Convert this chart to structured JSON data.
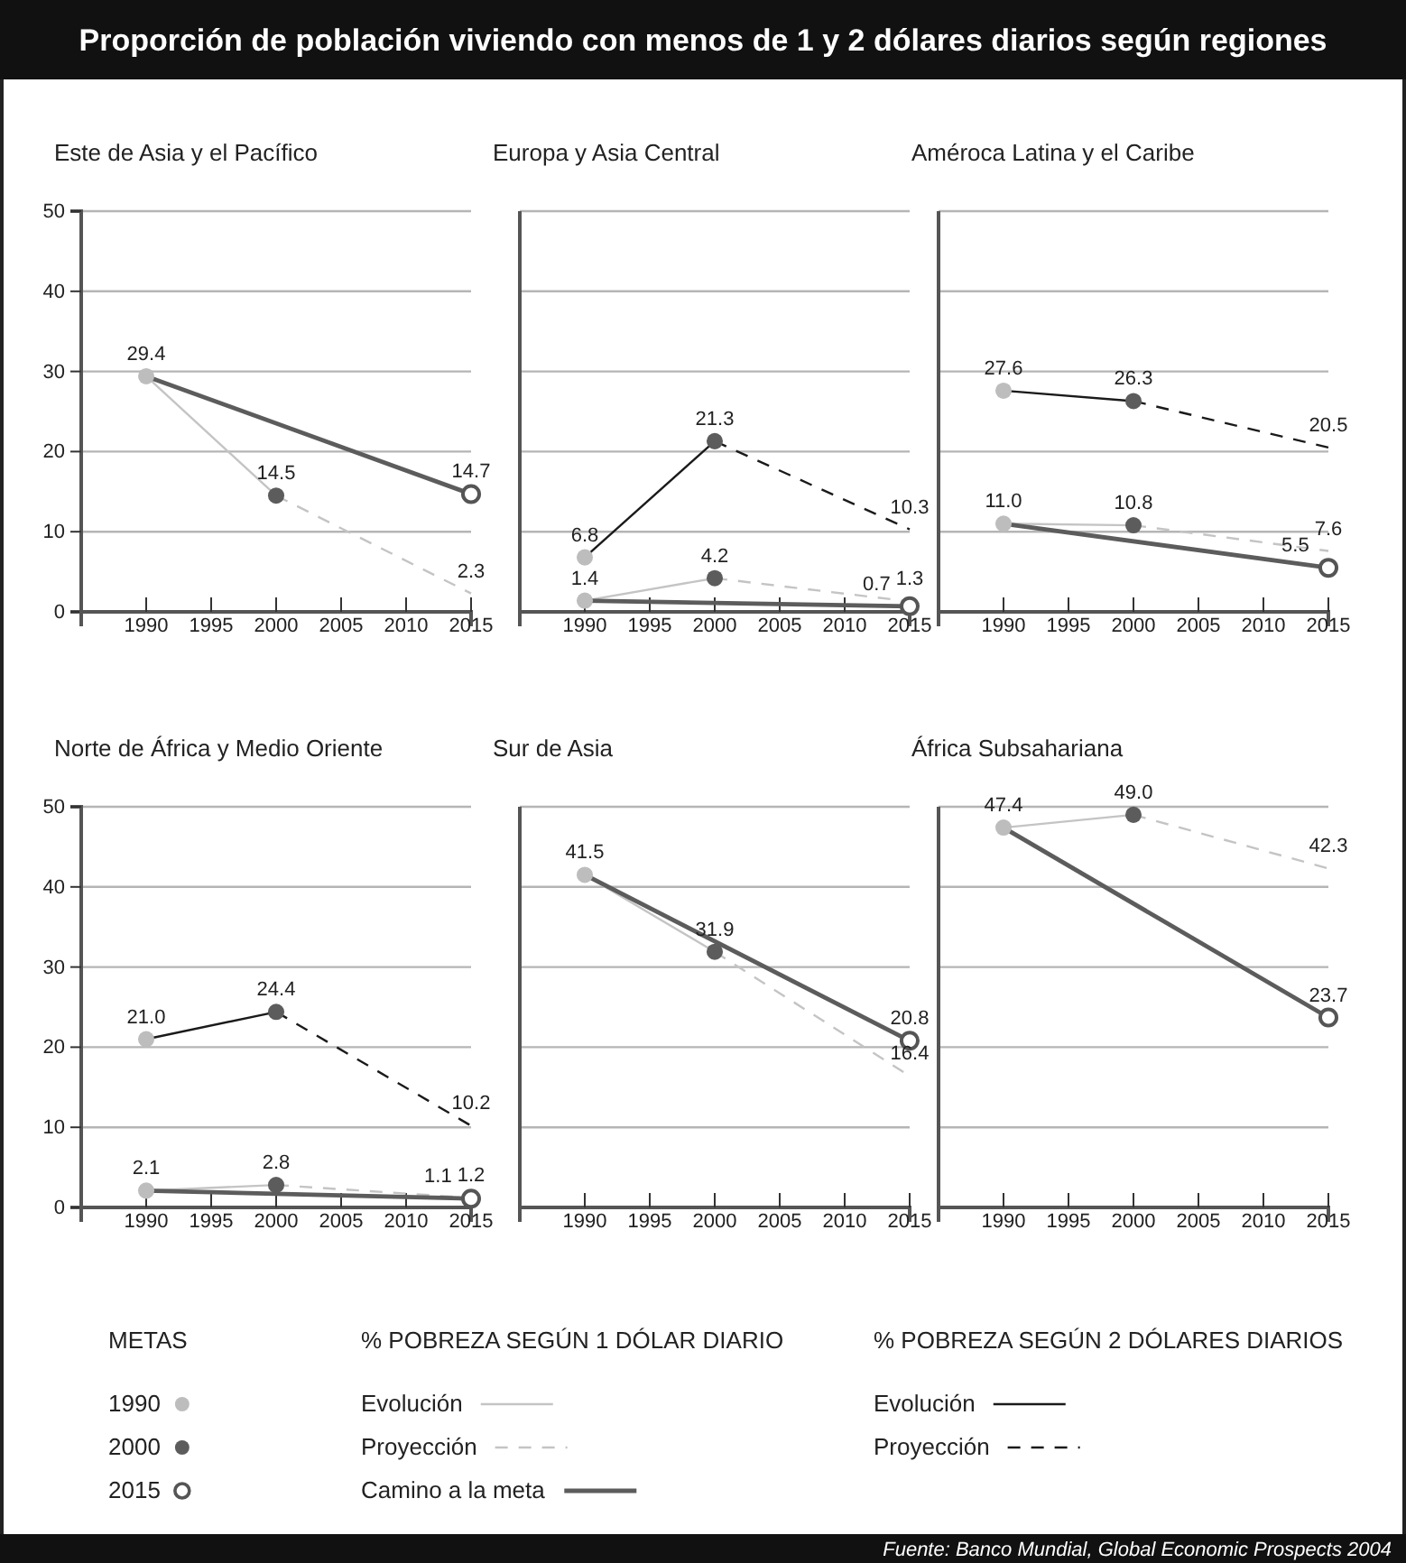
{
  "chart_data": [
    {
      "type": "other",
      "title": "Proporción de población viviendo con menos de 1 y 2 dólares diarios según regiones",
      "annotations": [
        "METAS",
        "% POBREZA SEGÚN 1 DÓLAR DIARIO",
        "% POBREZA SEGÚN 2 DÓLARES DIARIOS",
        "Fuente: Banco Mundial, Global Economic Prospects 2004"
      ]
    },
    {
      "type": "line",
      "title": "Este de Asia y el Pacífico",
      "xlim": [
        1985,
        2015
      ],
      "xticks": [
        1990,
        1995,
        2000,
        2005,
        2010,
        2015
      ],
      "ylim": [
        0,
        50
      ],
      "yticks": [
        0,
        10,
        20,
        30,
        40,
        50
      ],
      "grid": "y",
      "series": [
        {
          "type": "scatter",
          "marker": "circle",
          "color": "#bdbdbd",
          "x": [
            1990
          ],
          "values": [
            29.4
          ],
          "value_labels": [
            "29.4"
          ]
        },
        {
          "type": "scatter",
          "marker": "circle",
          "color": "#5c5c5c",
          "x": [
            2000
          ],
          "values": [
            14.5
          ],
          "value_labels": [
            "14.5"
          ]
        },
        {
          "type": "scatter",
          "marker": "circle",
          "color": "#ffffff",
          "x": [
            2015
          ],
          "values": [
            14.7
          ],
          "value_labels": [
            "14.7"
          ]
        },
        {
          "color": "#c4c4c4",
          "line_style": "solid",
          "x": [
            1990,
            2000
          ],
          "values": [
            29.4,
            14.5
          ]
        },
        {
          "color": "#c4c4c4",
          "line_style": "dashed",
          "x": [
            2000,
            2015
          ],
          "values": [
            14.5,
            2.3
          ],
          "value_labels": [
            null,
            "2.3"
          ]
        },
        {
          "color": "#5c5c5c",
          "line_style": "solid",
          "x": [
            1990,
            2015
          ],
          "values": [
            29.4,
            14.7
          ]
        }
      ]
    },
    {
      "type": "line",
      "title": "Europa y Asia Central",
      "xlim": [
        1985,
        2015
      ],
      "xticks": [
        1990,
        1995,
        2000,
        2005,
        2010,
        2015
      ],
      "ylim": [
        0,
        50
      ],
      "yticks": [
        0,
        10,
        20,
        30,
        40,
        50
      ],
      "grid": "y",
      "tick_labels": "x",
      "legend": "bottom",
      "series": [
        {
          "name": "1990",
          "type": "scatter",
          "marker": "circle",
          "color": "#bdbdbd",
          "x": [
            1990,
            1990
          ],
          "values": [
            6.8,
            1.4
          ],
          "value_labels": [
            "6.8",
            "1.4"
          ]
        },
        {
          "name": "2000",
          "type": "scatter",
          "marker": "circle",
          "color": "#5c5c5c",
          "x": [
            2000,
            2000
          ],
          "values": [
            21.3,
            4.2
          ],
          "value_labels": [
            "21.3",
            "4.2"
          ]
        },
        {
          "name": "2015",
          "type": "scatter",
          "marker": "circle",
          "color": "#ffffff",
          "x": [
            2015
          ],
          "values": [
            0.7
          ],
          "value_labels": [
            "0.7"
          ]
        },
        {
          "name": "Evolución",
          "color": "#c4c4c4",
          "line_style": "solid",
          "x": [
            1990,
            2000
          ],
          "values": [
            1.4,
            4.2
          ]
        },
        {
          "name": "Proyección",
          "color": "#c4c4c4",
          "line_style": "dashed",
          "x": [
            2000,
            2015
          ],
          "values": [
            4.2,
            1.3
          ],
          "value_labels": [
            null,
            "1.3"
          ]
        },
        {
          "name": "Camino a la meta",
          "color": "#5c5c5c",
          "line_style": "solid",
          "x": [
            1990,
            2015
          ],
          "values": [
            1.4,
            0.7
          ]
        },
        {
          "name": "Evolución",
          "color": "#1a1a1a",
          "line_style": "solid",
          "x": [
            1990,
            2000
          ],
          "values": [
            6.8,
            21.3
          ]
        },
        {
          "name": "Proyección",
          "color": "#1a1a1a",
          "line_style": "dashed",
          "x": [
            2000,
            2015
          ],
          "values": [
            21.3,
            10.3
          ],
          "value_labels": [
            null,
            "10.3"
          ]
        }
      ]
    },
    {
      "type": "line",
      "title": "Améroca Latina y el Caribe",
      "xlim": [
        1985,
        2015
      ],
      "xticks": [
        1990,
        1995,
        2000,
        2005,
        2010,
        2015
      ],
      "ylim": [
        0,
        50
      ],
      "yticks": [
        0,
        10,
        20,
        30,
        40,
        50
      ],
      "grid": "y",
      "tick_labels": "x",
      "series": [
        {
          "type": "scatter",
          "marker": "circle",
          "color": "#bdbdbd",
          "x": [
            1990,
            1990
          ],
          "values": [
            27.6,
            11.0
          ],
          "value_labels": [
            "27.6",
            "11.0"
          ]
        },
        {
          "type": "scatter",
          "marker": "circle",
          "color": "#5c5c5c",
          "x": [
            2000,
            2000
          ],
          "values": [
            26.3,
            10.8
          ],
          "value_labels": [
            "26.3",
            "10.8"
          ]
        },
        {
          "type": "scatter",
          "marker": "circle",
          "color": "#ffffff",
          "x": [
            2015
          ],
          "values": [
            5.5
          ],
          "value_labels": [
            "5.5"
          ]
        },
        {
          "color": "#c4c4c4",
          "line_style": "solid",
          "x": [
            1990,
            2000
          ],
          "values": [
            11.0,
            10.8
          ]
        },
        {
          "color": "#c4c4c4",
          "line_style": "dashed",
          "x": [
            2000,
            2015
          ],
          "values": [
            10.8,
            7.6
          ],
          "value_labels": [
            null,
            "7.6"
          ]
        },
        {
          "color": "#5c5c5c",
          "line_style": "solid",
          "x": [
            1990,
            2015
          ],
          "values": [
            11.0,
            5.5
          ]
        },
        {
          "color": "#1a1a1a",
          "line_style": "solid",
          "x": [
            1990,
            2000
          ],
          "values": [
            27.6,
            26.3
          ]
        },
        {
          "color": "#1a1a1a",
          "line_style": "dashed",
          "x": [
            2000,
            2015
          ],
          "values": [
            26.3,
            20.5
          ],
          "value_labels": [
            null,
            "20.5"
          ]
        }
      ]
    },
    {
      "type": "line",
      "title": "Norte de África y Medio Oriente",
      "xlim": [
        1985,
        2015
      ],
      "xticks": [
        1990,
        1995,
        2000,
        2005,
        2010,
        2015
      ],
      "ylim": [
        0,
        50
      ],
      "yticks": [
        0,
        10,
        20,
        30,
        40,
        50
      ],
      "grid": "y",
      "series": [
        {
          "type": "scatter",
          "marker": "circle",
          "color": "#bdbdbd",
          "x": [
            1990,
            1990
          ],
          "values": [
            21.0,
            2.1
          ],
          "value_labels": [
            "21.0",
            "2.1"
          ]
        },
        {
          "type": "scatter",
          "marker": "circle",
          "color": "#5c5c5c",
          "x": [
            2000,
            2000
          ],
          "values": [
            24.4,
            2.8
          ],
          "value_labels": [
            "24.4",
            "2.8"
          ]
        },
        {
          "type": "scatter",
          "marker": "circle",
          "color": "#ffffff",
          "x": [
            2015
          ],
          "values": [
            1.1
          ],
          "value_labels": [
            "1.1"
          ]
        },
        {
          "color": "#c4c4c4",
          "line_style": "solid",
          "x": [
            1990,
            2000
          ],
          "values": [
            2.1,
            2.8
          ]
        },
        {
          "color": "#c4c4c4",
          "line_style": "dashed",
          "x": [
            2000,
            2015
          ],
          "values": [
            2.8,
            1.2
          ],
          "value_labels": [
            null,
            "1.2"
          ]
        },
        {
          "color": "#5c5c5c",
          "line_style": "solid",
          "x": [
            1990,
            2015
          ],
          "values": [
            2.1,
            1.1
          ]
        },
        {
          "color": "#1a1a1a",
          "line_style": "solid",
          "x": [
            1990,
            2000
          ],
          "values": [
            21.0,
            24.4
          ]
        },
        {
          "color": "#1a1a1a",
          "line_style": "dashed",
          "x": [
            2000,
            2015
          ],
          "values": [
            24.4,
            10.2
          ],
          "value_labels": [
            null,
            "10.2"
          ]
        }
      ]
    },
    {
      "type": "line",
      "title": "Sur de Asia",
      "xlim": [
        1985,
        2015
      ],
      "xticks": [
        1990,
        1995,
        2000,
        2005,
        2010,
        2015
      ],
      "ylim": [
        0,
        50
      ],
      "yticks": [
        0,
        10,
        20,
        30,
        40,
        50
      ],
      "grid": "y",
      "tick_labels": "x",
      "series": [
        {
          "type": "scatter",
          "marker": "circle",
          "color": "#bdbdbd",
          "x": [
            1990
          ],
          "values": [
            41.5
          ],
          "value_labels": [
            "41.5"
          ]
        },
        {
          "type": "scatter",
          "marker": "circle",
          "color": "#5c5c5c",
          "x": [
            2000
          ],
          "values": [
            31.9
          ],
          "value_labels": [
            "31.9"
          ]
        },
        {
          "type": "scatter",
          "marker": "circle",
          "color": "#ffffff",
          "x": [
            2015
          ],
          "values": [
            20.8
          ],
          "value_labels": [
            "20.8"
          ]
        },
        {
          "color": "#c4c4c4",
          "line_style": "solid",
          "x": [
            1990,
            2000
          ],
          "values": [
            41.5,
            31.9
          ]
        },
        {
          "color": "#c4c4c4",
          "line_style": "dashed",
          "x": [
            2000,
            2015
          ],
          "values": [
            31.9,
            16.4
          ],
          "value_labels": [
            null,
            "16.4"
          ]
        },
        {
          "color": "#5c5c5c",
          "line_style": "solid",
          "x": [
            1990,
            2015
          ],
          "values": [
            41.5,
            20.8
          ]
        }
      ]
    },
    {
      "type": "line",
      "title": "África Subsahariana",
      "xlim": [
        1985,
        2015
      ],
      "xticks": [
        1990,
        1995,
        2000,
        2005,
        2010,
        2015
      ],
      "ylim": [
        0,
        50
      ],
      "yticks": [
        0,
        10,
        20,
        30,
        40,
        50
      ],
      "grid": "y",
      "tick_labels": "x",
      "series": [
        {
          "type": "scatter",
          "marker": "circle",
          "color": "#bdbdbd",
          "x": [
            1990
          ],
          "values": [
            47.4
          ],
          "value_labels": [
            "47.4"
          ]
        },
        {
          "type": "scatter",
          "marker": "circle",
          "color": "#5c5c5c",
          "x": [
            2000
          ],
          "values": [
            49.0
          ],
          "value_labels": [
            "49.0"
          ]
        },
        {
          "type": "scatter",
          "marker": "circle",
          "color": "#ffffff",
          "x": [
            2015
          ],
          "values": [
            23.7
          ],
          "value_labels": [
            "23.7"
          ]
        },
        {
          "color": "#c4c4c4",
          "line_style": "solid",
          "x": [
            1990,
            2000
          ],
          "values": [
            47.4,
            49.0
          ]
        },
        {
          "color": "#c4c4c4",
          "line_style": "dashed",
          "x": [
            2000,
            2015
          ],
          "values": [
            49.0,
            42.3
          ],
          "value_labels": [
            null,
            "42.3"
          ]
        },
        {
          "color": "#5c5c5c",
          "line_style": "solid",
          "x": [
            1990,
            2015
          ],
          "values": [
            47.4,
            23.7
          ]
        }
      ]
    }
  ]
}
